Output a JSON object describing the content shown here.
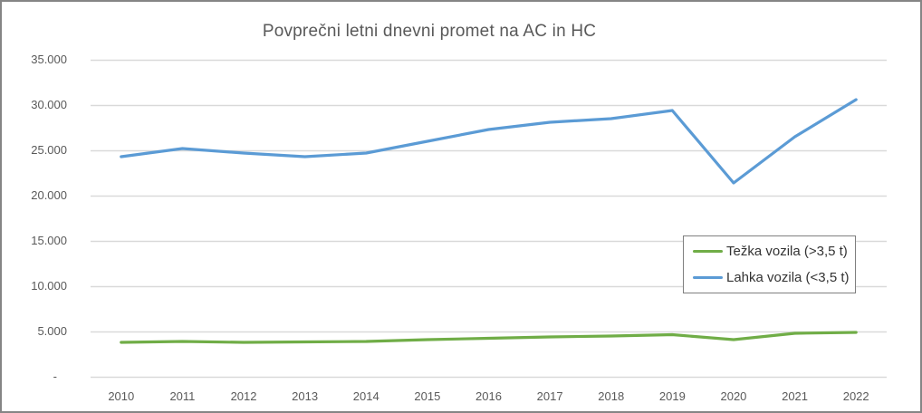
{
  "chart_data": {
    "type": "line",
    "title": "Povprečni letni dnevni promet na AC in HC",
    "categories": [
      "2010",
      "2011",
      "2012",
      "2013",
      "2014",
      "2015",
      "2016",
      "2017",
      "2018",
      "2019",
      "2020",
      "2021",
      "2022"
    ],
    "series": [
      {
        "name": "Težka vozila (>3,5 t)",
        "color": "#70AD47",
        "values": [
          3800,
          3900,
          3800,
          3850,
          3900,
          4100,
          4250,
          4400,
          4500,
          4650,
          4100,
          4800,
          4900
        ]
      },
      {
        "name": "Lahka vozila (<3,5 t)",
        "color": "#5B9BD5",
        "values": [
          24300,
          25200,
          24700,
          24300,
          24700,
          26000,
          27300,
          28100,
          28500,
          29400,
          21400,
          26500,
          30600
        ]
      }
    ],
    "y_axis": {
      "min": 0,
      "max": 35000,
      "step": 5000,
      "tick_labels": [
        "-",
        "5.000",
        "10.000",
        "15.000",
        "20.000",
        "25.000",
        "30.000",
        "35.000"
      ]
    },
    "legend_position": "middle-right",
    "grid": true,
    "gridline_color": "#D9D9D9"
  }
}
